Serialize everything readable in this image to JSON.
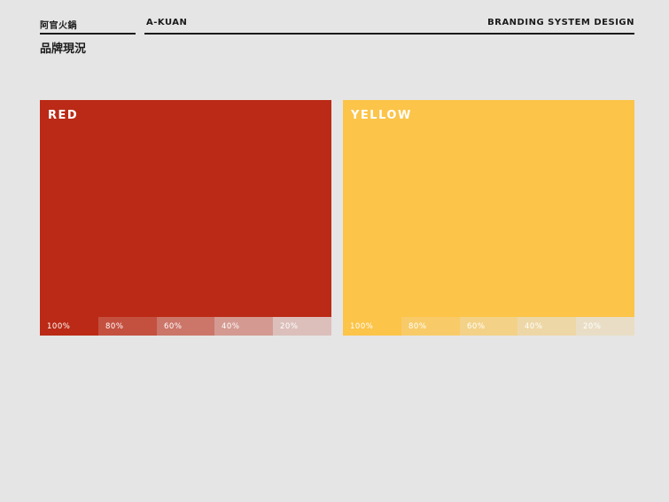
{
  "header": {
    "brand": "阿官火鍋",
    "project": "A-KUAN",
    "subtitle": "BRANDING SYSTEM DESIGN",
    "section_title": "品牌現況"
  },
  "swatches": [
    {
      "name": "RED",
      "color": "#bb2a16",
      "tints": [
        "100%",
        "80%",
        "60%",
        "40%",
        "20%"
      ]
    },
    {
      "name": "YELLOW",
      "color": "#fcc448",
      "tints": [
        "100%",
        "80%",
        "60%",
        "40%",
        "20%"
      ]
    }
  ]
}
